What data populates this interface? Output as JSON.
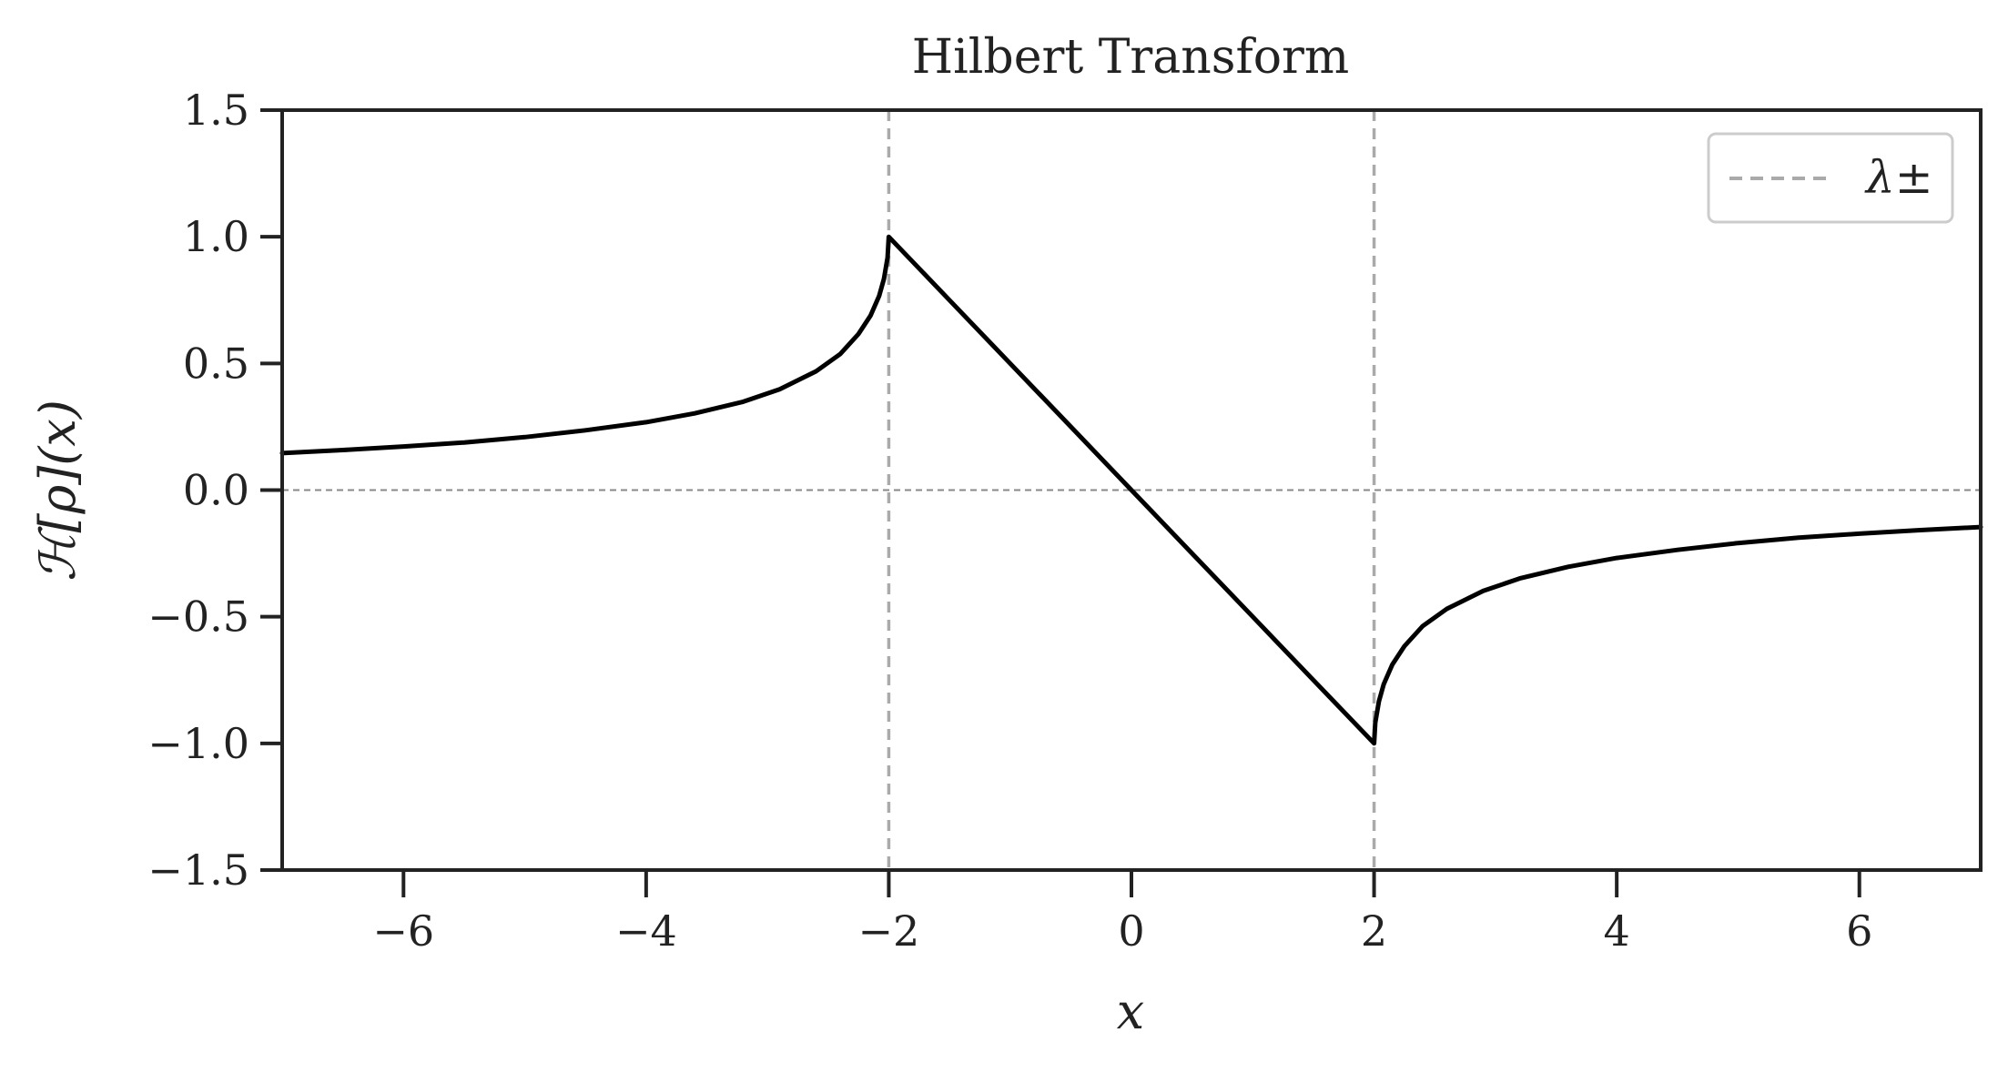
{
  "chart_data": {
    "type": "line",
    "title": "Hilbert Transform",
    "xlabel": "x",
    "ylabel": "ℋ[ρ](x)",
    "xlim": [
      -7,
      7
    ],
    "ylim": [
      -1.5,
      1.5
    ],
    "xticks": [
      -6,
      -4,
      -2,
      0,
      2,
      4,
      6
    ],
    "xtick_labels": [
      "−6",
      "−4",
      "−2",
      "0",
      "2",
      "4",
      "6"
    ],
    "yticks": [
      1.5,
      1.0,
      0.5,
      0.0,
      -0.5,
      -1.0,
      -1.5
    ],
    "ytick_labels": [
      "1.5",
      "1.0",
      "0.5",
      "0.0",
      "−0.5",
      "−1.0",
      "−1.5"
    ],
    "grid": false,
    "legend": {
      "position": "top-right",
      "label": "λ±"
    },
    "reference_lines": {
      "vertical": {
        "x": [
          -2,
          2
        ],
        "style": "dashed",
        "color": "#aaaaaa",
        "legend": true
      },
      "horizontal": {
        "y": 0,
        "style": "dashed",
        "color": "#888888",
        "legend": false
      }
    },
    "series": [
      {
        "color": "#000000",
        "x": [
          -7.0,
          -6.5,
          -6.0,
          -5.5,
          -5.0,
          -4.5,
          -4.0,
          -3.6,
          -3.2,
          -2.9,
          -2.6,
          -2.4,
          -2.25,
          -2.15,
          -2.08,
          -2.04,
          -2.01,
          -2.0,
          -1.5,
          -1.0,
          -0.5,
          0.0,
          0.5,
          1.0,
          1.5,
          2.0,
          2.01,
          2.04,
          2.08,
          2.15,
          2.25,
          2.4,
          2.6,
          2.9,
          3.2,
          3.6,
          4.0,
          4.5,
          5.0,
          5.5,
          6.0,
          6.5,
          7.0
        ],
        "y": [
          0.146,
          0.158,
          0.172,
          0.188,
          0.209,
          0.236,
          0.268,
          0.303,
          0.349,
          0.398,
          0.469,
          0.537,
          0.616,
          0.689,
          0.766,
          0.834,
          0.918,
          1.0,
          0.75,
          0.5,
          0.25,
          0.0,
          -0.25,
          -0.5,
          -0.75,
          -1.0,
          -0.918,
          -0.834,
          -0.766,
          -0.689,
          -0.616,
          -0.537,
          -0.469,
          -0.398,
          -0.349,
          -0.303,
          -0.268,
          -0.236,
          -0.209,
          -0.188,
          -0.172,
          -0.158,
          -0.146
        ]
      }
    ]
  },
  "colors": {
    "curve": "#000000",
    "vertical_lines": "#aaaaaa",
    "zero_line": "#888888",
    "axes": "#222222",
    "legend_border": "#cccccc"
  }
}
